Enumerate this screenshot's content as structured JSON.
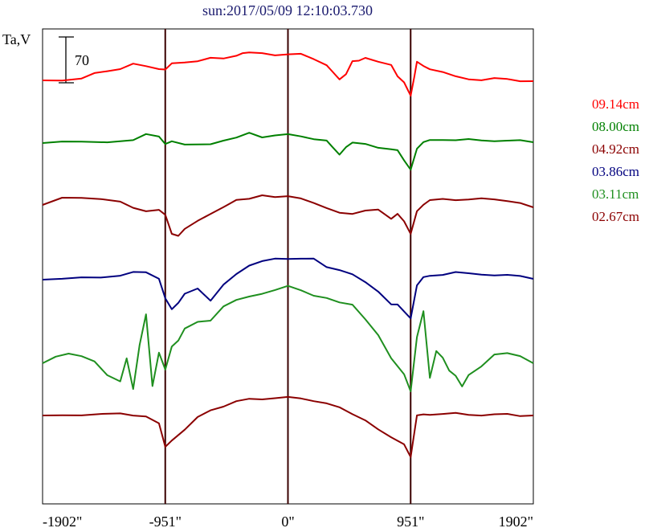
{
  "chart_data": {
    "type": "line",
    "title": "sun:2017/05/09 12:10:03.730",
    "ylabel": "Ta,V",
    "scale_bar_label": "70",
    "x_ticks": [
      "-1902\"",
      "-951\"",
      "0\"",
      "951\"",
      "1902\""
    ],
    "x_tick_values": [
      -1902,
      -951,
      0,
      951,
      1902
    ],
    "xlim": [
      -1902,
      1902
    ],
    "limb_lines": [
      -951,
      0,
      951
    ],
    "series": [
      {
        "name": "09.14cm",
        "color": "#ff0000",
        "points": [
          [
            -1902,
            100
          ],
          [
            -1750,
            99
          ],
          [
            -1600,
            98
          ],
          [
            -1500,
            92
          ],
          [
            -1400,
            88
          ],
          [
            -1300,
            85
          ],
          [
            -1200,
            80
          ],
          [
            -1100,
            83
          ],
          [
            -1000,
            85
          ],
          [
            -951,
            86
          ],
          [
            -900,
            80
          ],
          [
            -800,
            78
          ],
          [
            -700,
            75
          ],
          [
            -600,
            72
          ],
          [
            -500,
            74
          ],
          [
            -400,
            69
          ],
          [
            -350,
            65
          ],
          [
            -300,
            66
          ],
          [
            -200,
            67
          ],
          [
            -100,
            68
          ],
          [
            0,
            67
          ],
          [
            100,
            68
          ],
          [
            200,
            74
          ],
          [
            300,
            80
          ],
          [
            350,
            90
          ],
          [
            400,
            100
          ],
          [
            450,
            92
          ],
          [
            500,
            75
          ],
          [
            550,
            76
          ],
          [
            600,
            73
          ],
          [
            700,
            76
          ],
          [
            800,
            80
          ],
          [
            850,
            96
          ],
          [
            900,
            103
          ],
          [
            951,
            118
          ],
          [
            980,
            95
          ],
          [
            1000,
            78
          ],
          [
            1050,
            82
          ],
          [
            1100,
            85
          ],
          [
            1200,
            90
          ],
          [
            1300,
            96
          ],
          [
            1400,
            98
          ],
          [
            1500,
            99
          ],
          [
            1600,
            98
          ],
          [
            1700,
            99
          ],
          [
            1800,
            100
          ],
          [
            1902,
            101
          ]
        ]
      },
      {
        "name": "08.00cm",
        "color": "#008000",
        "points": [
          [
            -1902,
            178
          ],
          [
            -1750,
            177
          ],
          [
            -1600,
            177
          ],
          [
            -1400,
            176
          ],
          [
            -1200,
            174
          ],
          [
            -1100,
            168
          ],
          [
            -1000,
            170
          ],
          [
            -951,
            178
          ],
          [
            -900,
            176
          ],
          [
            -800,
            181
          ],
          [
            -600,
            179
          ],
          [
            -500,
            174
          ],
          [
            -400,
            172
          ],
          [
            -300,
            166
          ],
          [
            -200,
            170
          ],
          [
            -100,
            168
          ],
          [
            0,
            168
          ],
          [
            100,
            170
          ],
          [
            200,
            172
          ],
          [
            300,
            175
          ],
          [
            350,
            185
          ],
          [
            400,
            192
          ],
          [
            450,
            182
          ],
          [
            500,
            178
          ],
          [
            600,
            180
          ],
          [
            700,
            183
          ],
          [
            800,
            185
          ],
          [
            850,
            188
          ],
          [
            900,
            200
          ],
          [
            951,
            210
          ],
          [
            1000,
            185
          ],
          [
            1050,
            178
          ],
          [
            1100,
            174
          ],
          [
            1200,
            173
          ],
          [
            1300,
            175
          ],
          [
            1400,
            174
          ],
          [
            1500,
            174
          ],
          [
            1600,
            175
          ],
          [
            1700,
            176
          ],
          [
            1800,
            175
          ],
          [
            1902,
            177
          ]
        ]
      },
      {
        "name": "04.92cm",
        "color": "#8b0000",
        "points": [
          [
            -1902,
            255
          ],
          [
            -1750,
            246
          ],
          [
            -1600,
            245
          ],
          [
            -1450,
            248
          ],
          [
            -1300,
            252
          ],
          [
            -1200,
            258
          ],
          [
            -1100,
            262
          ],
          [
            -1000,
            262
          ],
          [
            -951,
            268
          ],
          [
            -900,
            290
          ],
          [
            -850,
            293
          ],
          [
            -800,
            286
          ],
          [
            -700,
            275
          ],
          [
            -600,
            265
          ],
          [
            -500,
            258
          ],
          [
            -400,
            250
          ],
          [
            -300,
            247
          ],
          [
            -200,
            242
          ],
          [
            -100,
            246
          ],
          [
            0,
            245
          ],
          [
            100,
            246
          ],
          [
            200,
            252
          ],
          [
            300,
            260
          ],
          [
            400,
            265
          ],
          [
            500,
            265
          ],
          [
            600,
            262
          ],
          [
            700,
            262
          ],
          [
            800,
            272
          ],
          [
            850,
            265
          ],
          [
            900,
            276
          ],
          [
            951,
            292
          ],
          [
            1000,
            262
          ],
          [
            1050,
            254
          ],
          [
            1100,
            250
          ],
          [
            1200,
            248
          ],
          [
            1300,
            248
          ],
          [
            1400,
            248
          ],
          [
            1500,
            248
          ],
          [
            1600,
            248
          ],
          [
            1700,
            249
          ],
          [
            1800,
            253
          ],
          [
            1902,
            258
          ]
        ]
      },
      {
        "name": "03.86cm",
        "color": "#00007f",
        "points": [
          [
            -1902,
            348
          ],
          [
            -1750,
            346
          ],
          [
            -1600,
            346
          ],
          [
            -1450,
            346
          ],
          [
            -1300,
            342
          ],
          [
            -1200,
            338
          ],
          [
            -1100,
            340
          ],
          [
            -1000,
            347
          ],
          [
            -951,
            370
          ],
          [
            -900,
            385
          ],
          [
            -850,
            378
          ],
          [
            -800,
            365
          ],
          [
            -700,
            358
          ],
          [
            -600,
            375
          ],
          [
            -500,
            355
          ],
          [
            -400,
            340
          ],
          [
            -300,
            330
          ],
          [
            -200,
            326
          ],
          [
            -100,
            322
          ],
          [
            0,
            321
          ],
          [
            100,
            322
          ],
          [
            200,
            323
          ],
          [
            300,
            332
          ],
          [
            400,
            335
          ],
          [
            500,
            342
          ],
          [
            600,
            352
          ],
          [
            700,
            362
          ],
          [
            800,
            378
          ],
          [
            850,
            380
          ],
          [
            900,
            388
          ],
          [
            951,
            395
          ],
          [
            1000,
            355
          ],
          [
            1050,
            346
          ],
          [
            1100,
            343
          ],
          [
            1200,
            341
          ],
          [
            1300,
            339
          ],
          [
            1400,
            341
          ],
          [
            1500,
            341
          ],
          [
            1600,
            342
          ],
          [
            1700,
            343
          ],
          [
            1800,
            344
          ],
          [
            1902,
            347
          ]
        ]
      },
      {
        "name": "03.11cm",
        "color": "#1f8f1f",
        "points": [
          [
            -1902,
            452
          ],
          [
            -1800,
            445
          ],
          [
            -1700,
            440
          ],
          [
            -1600,
            442
          ],
          [
            -1500,
            450
          ],
          [
            -1400,
            468
          ],
          [
            -1300,
            474
          ],
          [
            -1250,
            445
          ],
          [
            -1200,
            485
          ],
          [
            -1150,
            430
          ],
          [
            -1100,
            390
          ],
          [
            -1050,
            480
          ],
          [
            -1000,
            440
          ],
          [
            -951,
            460
          ],
          [
            -900,
            430
          ],
          [
            -850,
            424
          ],
          [
            -800,
            410
          ],
          [
            -700,
            400
          ],
          [
            -600,
            398
          ],
          [
            -500,
            382
          ],
          [
            -400,
            374
          ],
          [
            -300,
            368
          ],
          [
            -200,
            365
          ],
          [
            -100,
            362
          ],
          [
            0,
            356
          ],
          [
            100,
            360
          ],
          [
            200,
            368
          ],
          [
            300,
            372
          ],
          [
            400,
            376
          ],
          [
            500,
            378
          ],
          [
            600,
            398
          ],
          [
            700,
            418
          ],
          [
            800,
            445
          ],
          [
            900,
            465
          ],
          [
            951,
            488
          ],
          [
            1000,
            420
          ],
          [
            1050,
            386
          ],
          [
            1100,
            470
          ],
          [
            1150,
            438
          ],
          [
            1200,
            445
          ],
          [
            1250,
            460
          ],
          [
            1300,
            468
          ],
          [
            1350,
            482
          ],
          [
            1400,
            466
          ],
          [
            1500,
            455
          ],
          [
            1600,
            442
          ],
          [
            1700,
            440
          ],
          [
            1800,
            442
          ],
          [
            1902,
            452
          ]
        ]
      },
      {
        "name": "02.67cm",
        "color": "#8b0000",
        "points": [
          [
            -1902,
            517
          ],
          [
            -1750,
            516
          ],
          [
            -1600,
            516
          ],
          [
            -1450,
            516
          ],
          [
            -1300,
            515
          ],
          [
            -1200,
            516
          ],
          [
            -1100,
            518
          ],
          [
            -1000,
            528
          ],
          [
            -951,
            556
          ],
          [
            -900,
            547
          ],
          [
            -800,
            535
          ],
          [
            -700,
            520
          ],
          [
            -600,
            510
          ],
          [
            -500,
            505
          ],
          [
            -400,
            500
          ],
          [
            -300,
            497
          ],
          [
            -200,
            496
          ],
          [
            -100,
            495
          ],
          [
            0,
            495
          ],
          [
            100,
            496
          ],
          [
            200,
            498
          ],
          [
            300,
            502
          ],
          [
            400,
            508
          ],
          [
            500,
            515
          ],
          [
            600,
            522
          ],
          [
            700,
            535
          ],
          [
            800,
            545
          ],
          [
            900,
            552
          ],
          [
            951,
            568
          ],
          [
            1000,
            518
          ],
          [
            1050,
            516
          ],
          [
            1100,
            515
          ],
          [
            1200,
            515
          ],
          [
            1300,
            515
          ],
          [
            1400,
            516
          ],
          [
            1500,
            516
          ],
          [
            1600,
            516
          ],
          [
            1700,
            516
          ],
          [
            1800,
            517
          ],
          [
            1902,
            517
          ]
        ]
      }
    ]
  }
}
